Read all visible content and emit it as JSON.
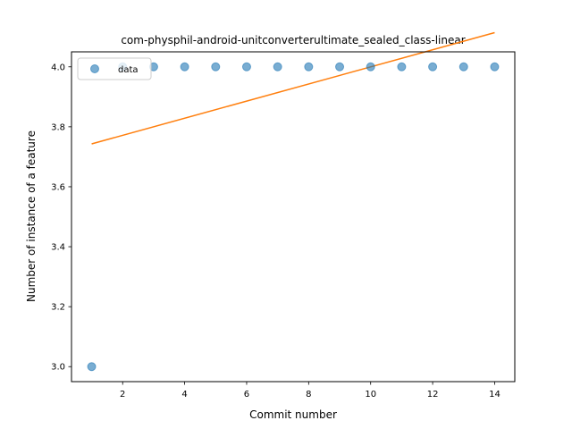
{
  "chart_data": {
    "type": "scatter",
    "title": "com-physphil-android-unitconverterultimate_sealed_class-linear",
    "xlabel": "Commit number",
    "ylabel": "Number of instance of a feature",
    "xlim": [
      0.35,
      14.65
    ],
    "ylim": [
      2.95,
      4.05
    ],
    "x_ticks": [
      2,
      4,
      6,
      8,
      10,
      12,
      14
    ],
    "y_ticks": [
      3.0,
      3.2,
      3.4,
      3.6,
      3.8,
      4.0
    ],
    "grid": false,
    "legend_position": "upper-left",
    "series": [
      {
        "name": "data",
        "kind": "scatter",
        "color": "#1f77b4",
        "x": [
          1,
          2,
          3,
          4,
          5,
          6,
          7,
          8,
          9,
          10,
          11,
          12,
          13,
          14
        ],
        "y": [
          3,
          4,
          4,
          4,
          4,
          4,
          4,
          4,
          4,
          4,
          4,
          4,
          4,
          4
        ]
      },
      {
        "kind": "line",
        "color": "#ff7f0e",
        "x": [
          1,
          14
        ],
        "y": [
          3.743,
          4.114
        ]
      }
    ]
  }
}
